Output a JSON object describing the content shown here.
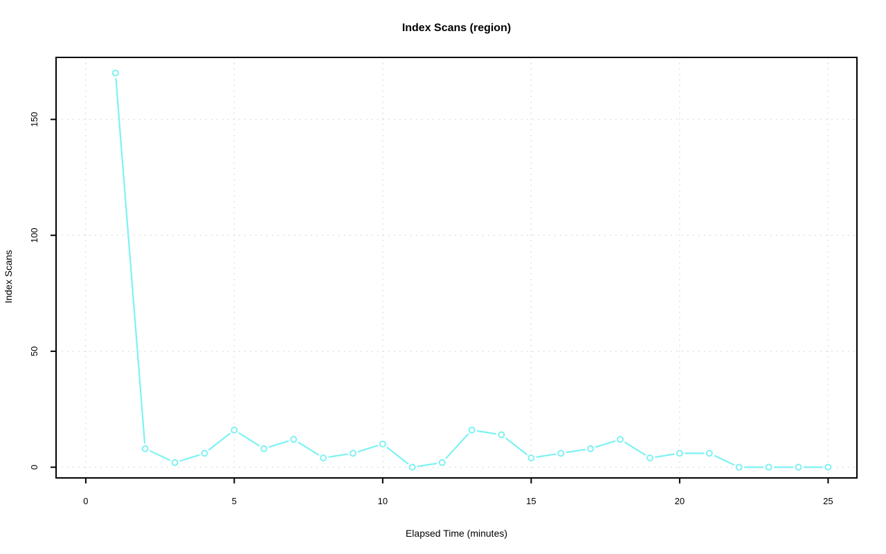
{
  "figure": {
    "title": "Index Scans (region)",
    "xlabel": "Elapsed Time (minutes)",
    "ylabel": "Index Scans"
  },
  "chart_data": {
    "type": "line",
    "title": "Index Scans (region)",
    "xlabel": "Elapsed Time (minutes)",
    "ylabel": "Index Scans",
    "series": [
      {
        "name": "index-scans",
        "x": [
          1,
          2,
          3,
          4,
          5,
          6,
          7,
          8,
          9,
          10,
          11,
          12,
          13,
          14,
          15,
          16,
          17,
          18,
          19,
          20,
          21,
          22,
          23,
          24,
          25
        ],
        "y": [
          170,
          8,
          2,
          6,
          16,
          8,
          12,
          4,
          6,
          10,
          0,
          2,
          16,
          14,
          4,
          6,
          8,
          12,
          4,
          6,
          6,
          0,
          0,
          0,
          0
        ]
      }
    ],
    "xticks": [
      0,
      5,
      10,
      15,
      20,
      25
    ],
    "yticks": [
      0,
      50,
      100,
      150
    ],
    "xlim": [
      -1.0,
      25.97
    ],
    "ylim": [
      -4.62,
      176.73
    ],
    "grid": "dotted",
    "legend": "none",
    "marker": "open-circle",
    "colors": {
      "line": "#7df2f2",
      "grid": "#d8d8d8",
      "axis": "#000000",
      "text": "#000000",
      "background": "#ffffff"
    }
  }
}
